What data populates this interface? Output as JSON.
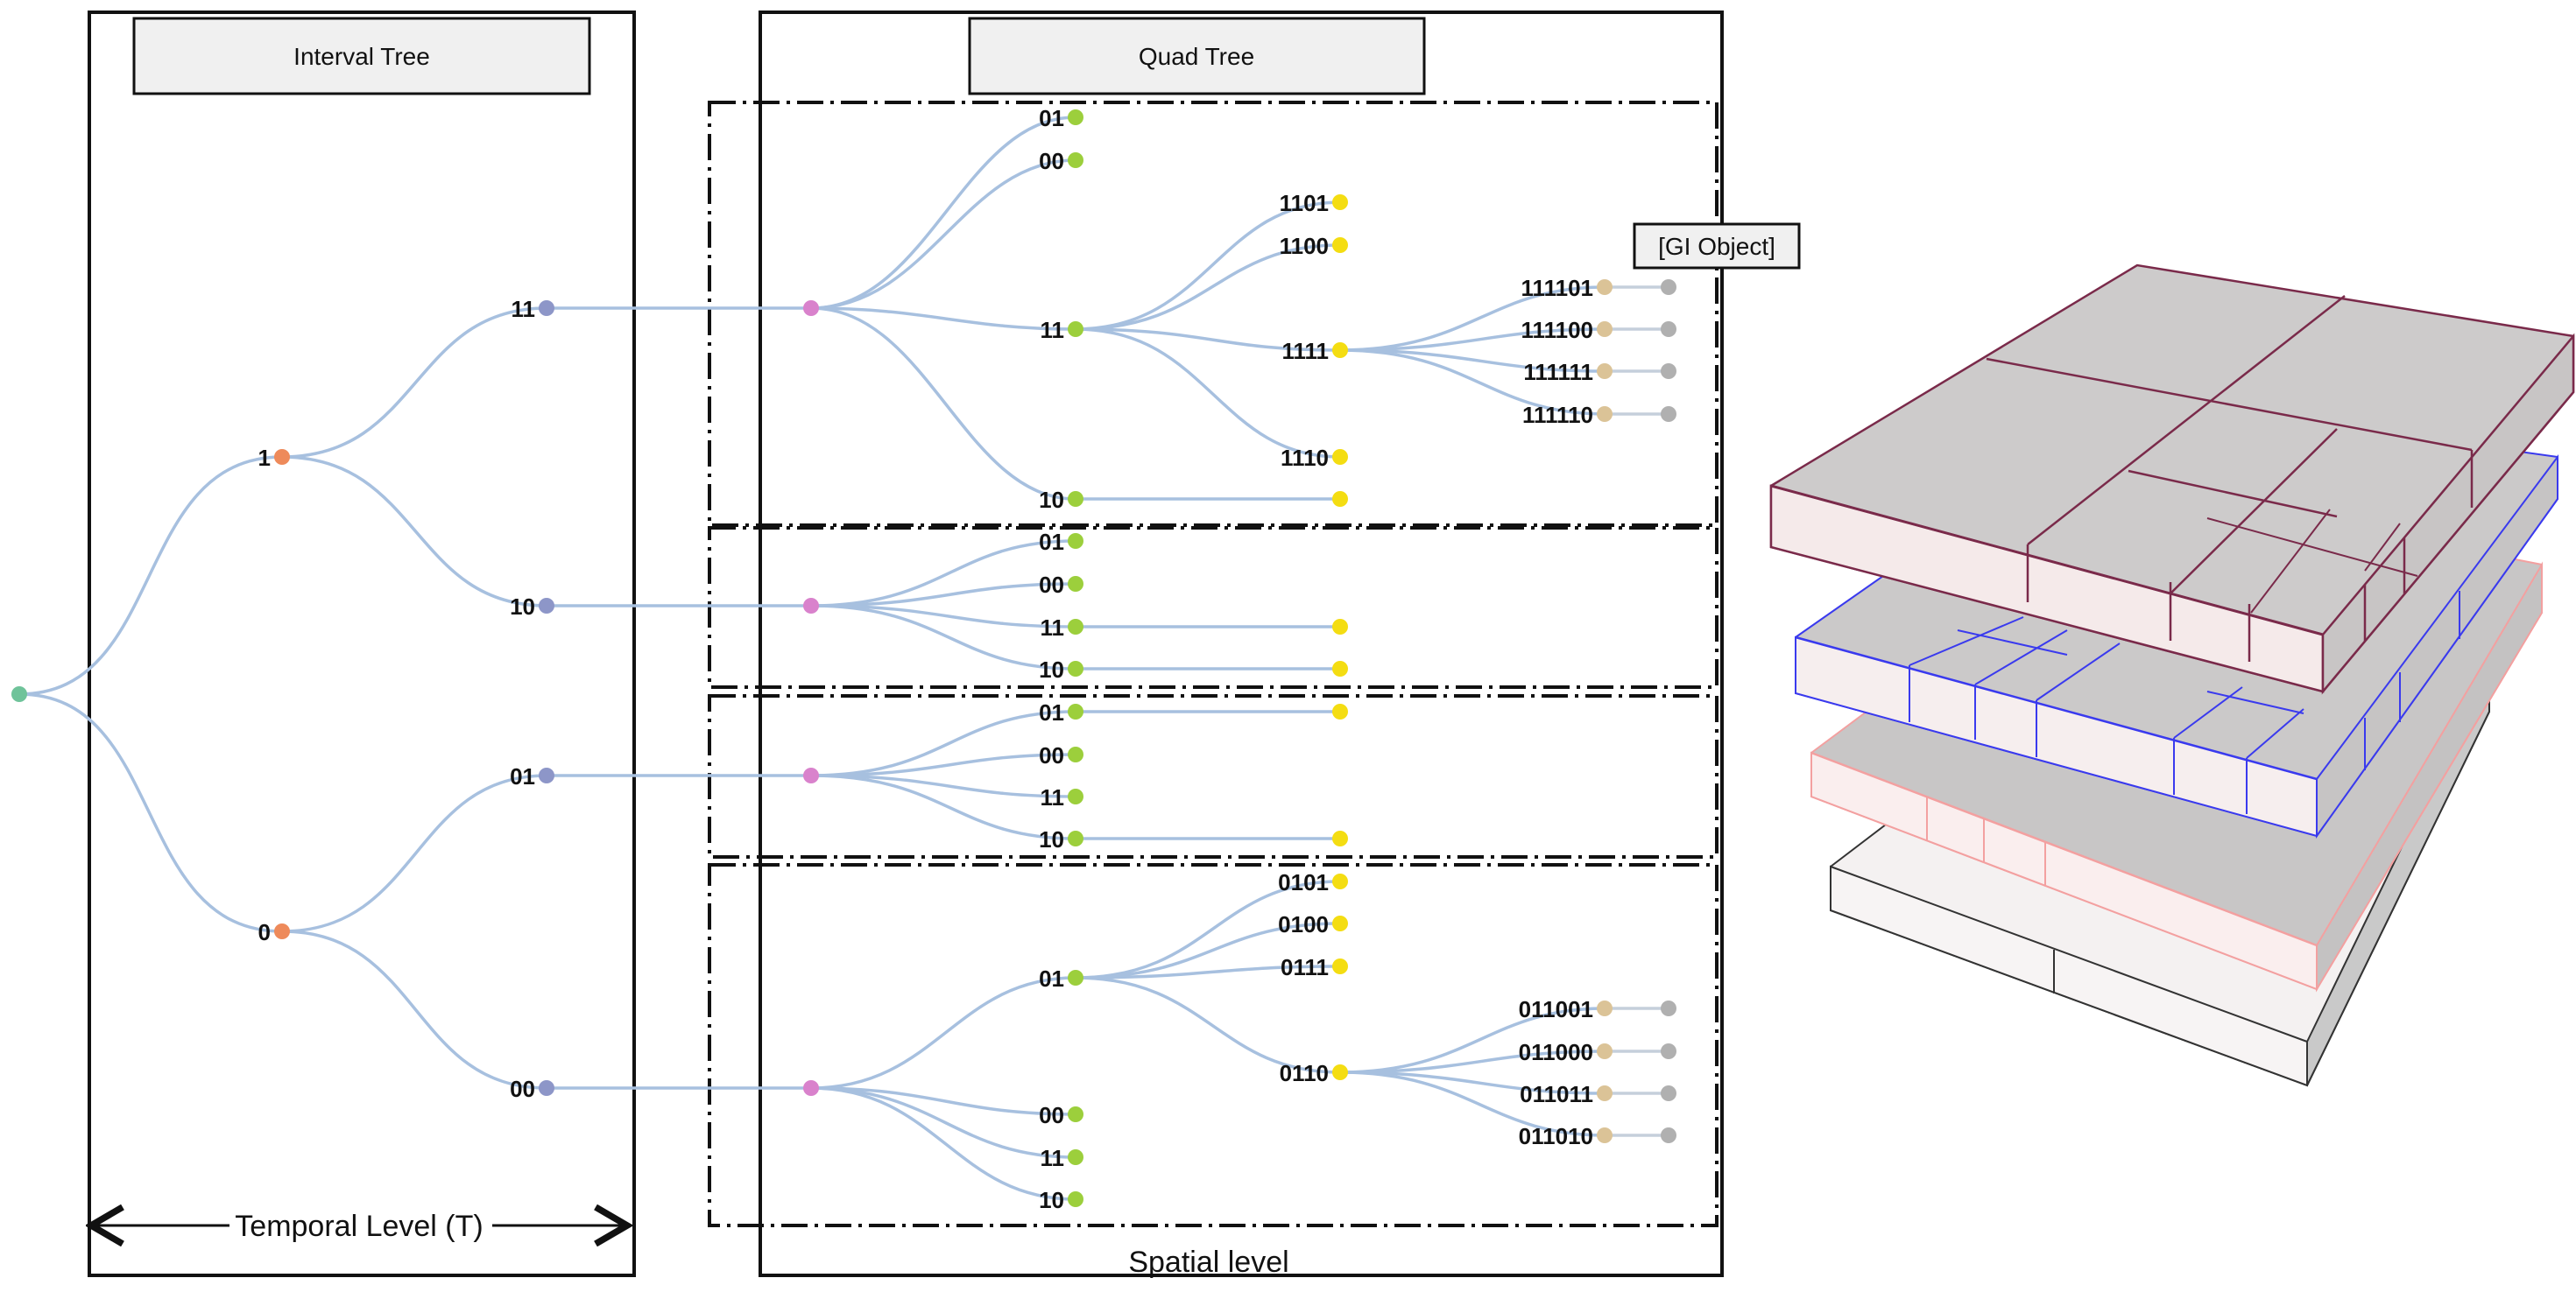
{
  "panels": {
    "interval_tree_title": "Interval Tree",
    "quad_tree_title": "Quad Tree",
    "gi_object_label": "[GI Object]",
    "temporal_axis_label": "Temporal Level (T)",
    "spatial_axis_label": "Spatial level"
  },
  "colors": {
    "edge": "#a7c0df",
    "root": "#6fc39a",
    "temporal_l1": "#ee8a5a",
    "temporal_l2": "#8d96c8",
    "quad_root": "#d982cc",
    "quad_l1": "#9ccf3c",
    "quad_l2": "#f4dd12",
    "quad_l3": "#dbc397",
    "object": "#b0b0b0",
    "upper_layer": "#7a2a4a",
    "middle_layer": "#3a3aee",
    "lower_layer": "#f3a0a0",
    "base_layer": "#333333"
  },
  "temporal_tree": {
    "level1": [
      {
        "label": "1"
      },
      {
        "label": "0"
      }
    ],
    "level2": [
      {
        "label": "11"
      },
      {
        "label": "10"
      },
      {
        "label": "01"
      },
      {
        "label": "00"
      }
    ]
  },
  "quad_trees": [
    {
      "level1": [
        "01",
        "00",
        "11",
        "10"
      ],
      "level2": [
        "1101",
        "1100",
        "1111",
        "1110"
      ],
      "level3": [
        "111101",
        "111100",
        "111111",
        "111110"
      ]
    },
    {
      "level1": [
        "01",
        "00",
        "11",
        "10"
      ]
    },
    {
      "level1": [
        "01",
        "00",
        "11",
        "10"
      ]
    },
    {
      "level1": [
        "01",
        "00",
        "11",
        "10"
      ],
      "level2": [
        "0101",
        "0100",
        "0111",
        "0110"
      ],
      "level3": [
        "011001",
        "011000",
        "011011",
        "011010"
      ]
    }
  ]
}
